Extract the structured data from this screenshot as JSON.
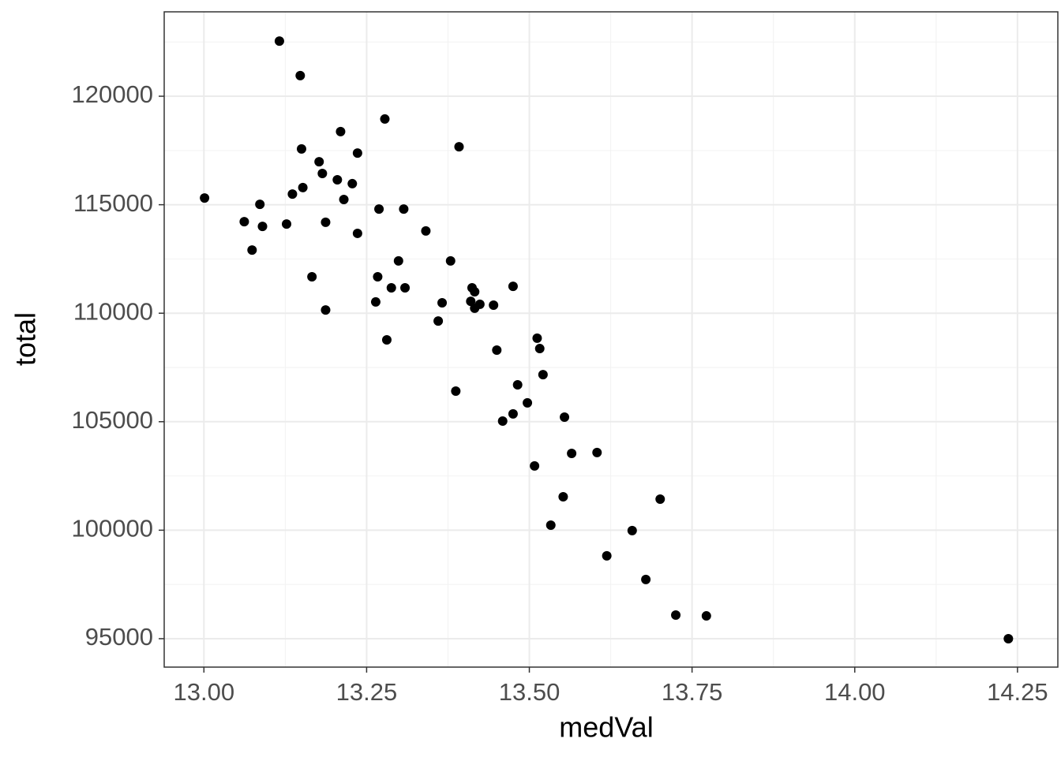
{
  "chart_data": {
    "type": "scatter",
    "x_label": "medVal",
    "y_label": "total",
    "color": "#000000",
    "grid": true,
    "xlim": [
      12.939,
      14.312
    ],
    "ylim": [
      93690,
      123890
    ],
    "xticks": [
      {
        "value": 13.0,
        "label": "13.00"
      },
      {
        "value": 13.25,
        "label": "13.25"
      },
      {
        "value": 13.5,
        "label": "13.50"
      },
      {
        "value": 13.75,
        "label": "13.75"
      },
      {
        "value": 14.0,
        "label": "14.00"
      },
      {
        "value": 14.25,
        "label": "14.25"
      }
    ],
    "yticks": [
      95000,
      100000,
      105000,
      110000,
      115000,
      120000
    ],
    "x": [
      13.116,
      13.148,
      13.001,
      13.062,
      13.086,
      13.09,
      13.074,
      13.127,
      13.136,
      13.152,
      13.15,
      13.177,
      13.182,
      13.205,
      13.21,
      13.228,
      13.236,
      13.215,
      13.187,
      13.236,
      13.166,
      13.187,
      13.278,
      13.269,
      13.307,
      13.341,
      13.267,
      13.264,
      13.288,
      13.299,
      13.309,
      13.281,
      13.392,
      13.379,
      13.366,
      13.36,
      13.387,
      13.412,
      13.416,
      13.41,
      13.416,
      13.424,
      13.445,
      13.475,
      13.45,
      13.512,
      13.516,
      13.521,
      13.482,
      13.497,
      13.475,
      13.459,
      13.554,
      13.565,
      13.604,
      13.508,
      13.552,
      13.533,
      13.701,
      13.658,
      13.619,
      13.679,
      13.725,
      13.772,
      14.236
    ],
    "values": [
      122540,
      120950,
      115310,
      114220,
      115020,
      114000,
      112910,
      114110,
      115490,
      115790,
      117570,
      116980,
      116440,
      116150,
      118370,
      115970,
      117380,
      115240,
      114190,
      113680,
      111680,
      110150,
      118950,
      114800,
      114800,
      113790,
      111680,
      110520,
      111170,
      112410,
      111170,
      108770,
      117670,
      112410,
      110480,
      109640,
      106410,
      111170,
      110990,
      110550,
      110230,
      110410,
      110370,
      111240,
      108300,
      108850,
      108370,
      107170,
      106700,
      105870,
      105360,
      105030,
      105210,
      103540,
      103580,
      102960,
      101540,
      100230,
      101430,
      99980,
      98820,
      97730,
      96090,
      96050,
      95000
    ]
  }
}
